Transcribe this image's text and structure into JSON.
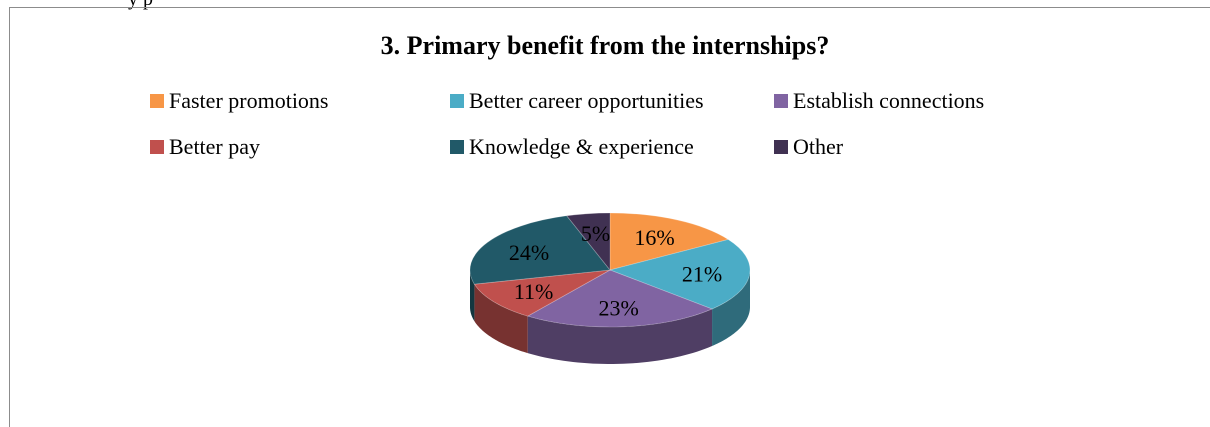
{
  "page_text_fragment": "y                                          p",
  "chart_data": {
    "type": "pie",
    "title": "3. Primary benefit from the internships?",
    "categories": [
      "Faster promotions",
      "Better career opportunities",
      "Establish connections",
      "Better pay",
      "Knowledge & experience",
      "Other"
    ],
    "values": [
      16,
      21,
      23,
      11,
      24,
      5
    ],
    "value_labels": [
      "16%",
      "21%",
      "23%",
      "11%",
      "24%",
      "5%"
    ],
    "slice_order": [
      0,
      1,
      2,
      3,
      4,
      5
    ],
    "colors": [
      "#f79646",
      "#4bacc6",
      "#8064a2",
      "#c0504d",
      "#215968",
      "#403152"
    ],
    "legend_position": "top",
    "style": "3d-pie"
  }
}
